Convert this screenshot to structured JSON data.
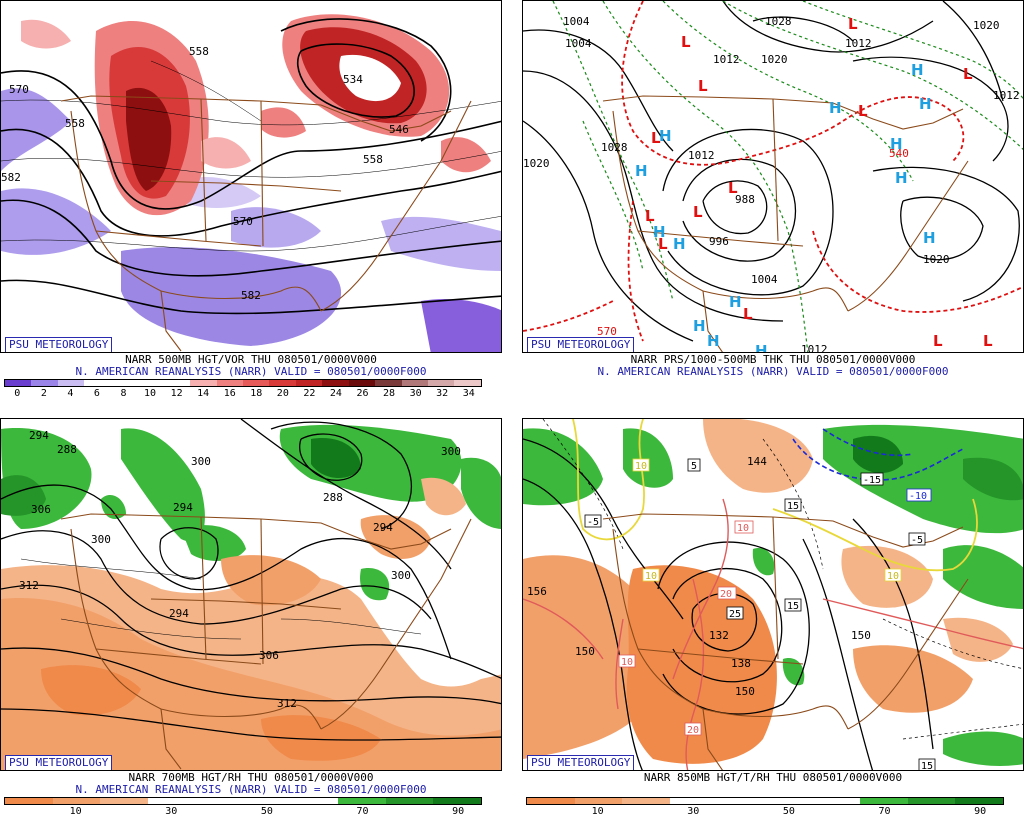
{
  "panels": [
    {
      "id": "vor500",
      "tag": "PSU METEOROLOGY",
      "line1": "NARR 500MB HGT/VOR THU 080501/0000V000",
      "line2": "N. AMERICAN REANALYSIS (NARR) VALID = 080501/0000F000",
      "colorbar": [
        "#6a3fd0",
        "#9a84e8",
        "#c9bdf2",
        "#ffffff",
        "#ffffff",
        "#ffffff",
        "#ffffff",
        "#f6b0b0",
        "#ee8080",
        "#e65a5a",
        "#d83a3a",
        "#c02424",
        "#8e0f0f",
        "#6a0a0a",
        "#7a3a3a",
        "#b07878",
        "#d4a8a8",
        "#ecc8c8"
      ],
      "ticks": [
        "0",
        "2",
        "4",
        "6",
        "8",
        "10",
        "12",
        "14",
        "16",
        "18",
        "20",
        "22",
        "24",
        "26",
        "28",
        "30",
        "32",
        "34"
      ],
      "contour_labels": [
        "558",
        "570",
        "558",
        "534",
        "546",
        "558",
        "570",
        "582",
        "582"
      ]
    },
    {
      "id": "prs1000",
      "tag": "PSU METEOROLOGY",
      "line1": "NARR PRS/1000-500MB THK THU 080501/0000V000",
      "line2": "N. AMERICAN REANALYSIS (NARR) VALID = 080501/0000F000",
      "contour_labels": [
        "1004",
        "1012",
        "1028",
        "1012",
        "1020",
        "1028",
        "1012",
        "1020",
        "1020",
        "1012",
        "1004",
        "996",
        "988",
        "1004",
        "1012",
        "1020",
        "570",
        "540"
      ]
    },
    {
      "id": "rh700",
      "tag": "PSU METEOROLOGY",
      "line1": "NARR 700MB HGT/RH THU 080501/0000V000",
      "line2": "N. AMERICAN REANALYSIS (NARR) VALID = 080501/0000F000",
      "colorbar": [
        "#f08a4a",
        "#f2a06a",
        "#f5b488",
        "#ffffff",
        "#ffffff",
        "#ffffff",
        "#ffffff",
        "#3cb83c",
        "#25952a",
        "#137a1c"
      ],
      "ticks": [
        "10",
        "30",
        "50",
        "70",
        "90"
      ],
      "contour_labels": [
        "288",
        "294",
        "300",
        "306",
        "300",
        "294",
        "288",
        "294",
        "300",
        "312",
        "294",
        "300",
        "306",
        "312"
      ]
    },
    {
      "id": "t850",
      "tag": "PSU METEOROLOGY",
      "line1": "NARR 850MB HGT/T/RH THU 080501/0000V000",
      "line2": "",
      "colorbar": [
        "#f08a4a",
        "#f2a06a",
        "#f5b488",
        "#ffffff",
        "#ffffff",
        "#ffffff",
        "#ffffff",
        "#3cb83c",
        "#25952a",
        "#137a1c"
      ],
      "ticks": [
        "10",
        "30",
        "50",
        "70",
        "90"
      ],
      "contour_labels": [
        "144",
        "150",
        "138",
        "132",
        "150",
        "156",
        "150",
        "-5",
        "5",
        "10",
        "15",
        "20",
        "25",
        "-15",
        "-10",
        "-5",
        "10",
        "15",
        "20",
        "10",
        "10",
        "10",
        "15"
      ]
    }
  ]
}
